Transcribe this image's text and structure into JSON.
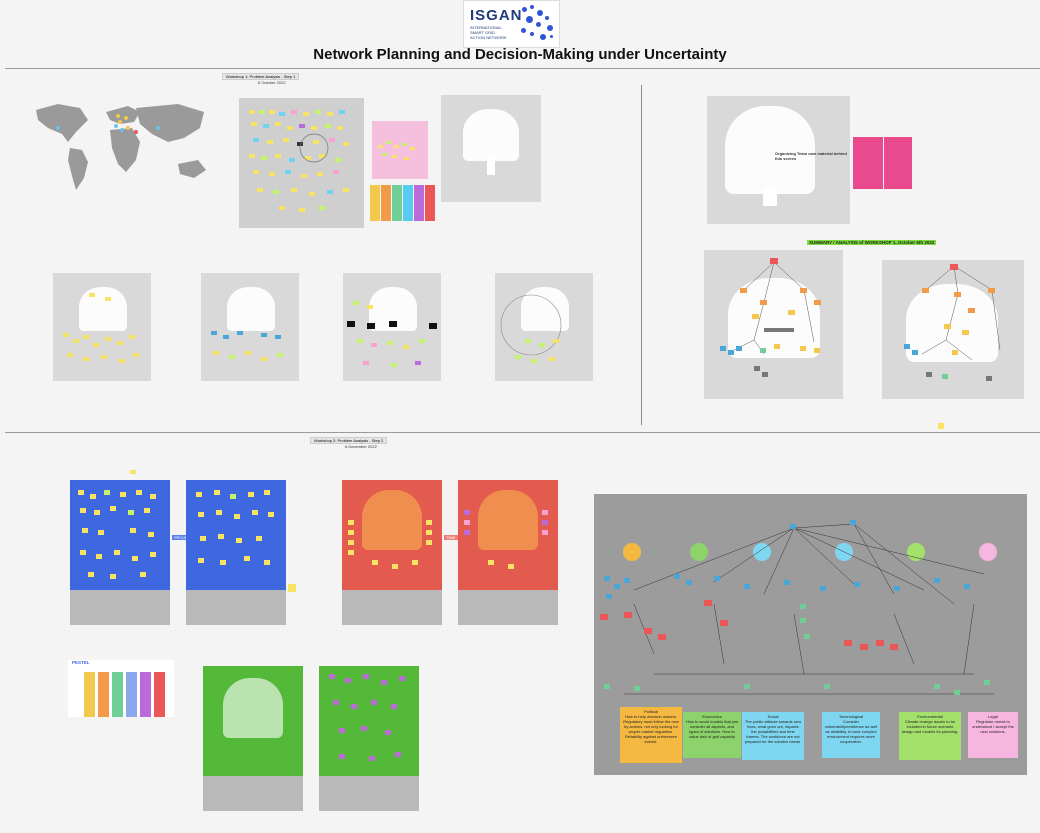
{
  "logo": {
    "text": "ISGAN",
    "subtitle": "INTERNATIONAL SMART GRID ACTION NETWORK"
  },
  "title": "Network Planning and Decision-Making under Uncertainty",
  "workshop1": {
    "title": "Workshop 1: Problem Analysis - Step 1",
    "date": "6 October 2022"
  },
  "workshop2": {
    "title": "Workshop 2: Problem Analysis - Step 2",
    "date": "6 December 2022"
  },
  "organizing_note": "Organizing Team own material behind this screen",
  "summary_title": "SUMMARY / ANALYSIS of WORKSHOP 1, October 6th 2022",
  "pestel_label": "PESTEL",
  "pestel_letters": [
    "P",
    "E",
    "S",
    "T",
    "E",
    "L"
  ],
  "pestel_colors": [
    "#f2c94c",
    "#f2994a",
    "#6fcf97",
    "#56ccf2",
    "#bb6bd9",
    "#eb5757"
  ],
  "analysis_circles": [
    "Political",
    "Economic",
    "Social",
    "Technological",
    "Environmental",
    "Legal"
  ],
  "analysis_circle_colors": [
    "#f5b942",
    "#8bd36a",
    "#7fd6f0",
    "#7fd6f0",
    "#a3e06c",
    "#f7b6e0"
  ],
  "analysis_boxes": [
    {
      "title": "Political",
      "text": "How to help decision makers. Regulatory must follow the new by actions, not only looking for proper market regulation. Reliability against unforeseen events."
    },
    {
      "title": "Economics",
      "text": "How to avoid models that just consider all aspects, and types of solutions. How to value lack of grid capacity"
    },
    {
      "title": "Social",
      "text": "The public attitude towards new lines, what goes out, impacts the possibilities and time frames. The workforce are not prepared for the solution needs."
    },
    {
      "title": "Technological",
      "text": "Consider vulnerability/resilience as well as reliability. A more complex environment requires more cooperation."
    },
    {
      "title": "Environmental",
      "text": "Climate change issues to be included in future scenario design and models for planning."
    },
    {
      "title": "Legal",
      "text": "Regulator needs to understand / accept the new solutions."
    }
  ],
  "pestel_card_labels": [
    "Political",
    "Economic",
    "Social",
    "Technological",
    "Environmental",
    "Legal"
  ],
  "board_labels": {
    "blue_tag": "PROJECT",
    "red_tag": "TIME"
  },
  "colors": {
    "blue_board": "#3f67e0",
    "red_board": "#e35b4f",
    "green_board": "#54b838",
    "purple_dark": "#3a8f2a",
    "gray_board": "#9c9c9c"
  }
}
